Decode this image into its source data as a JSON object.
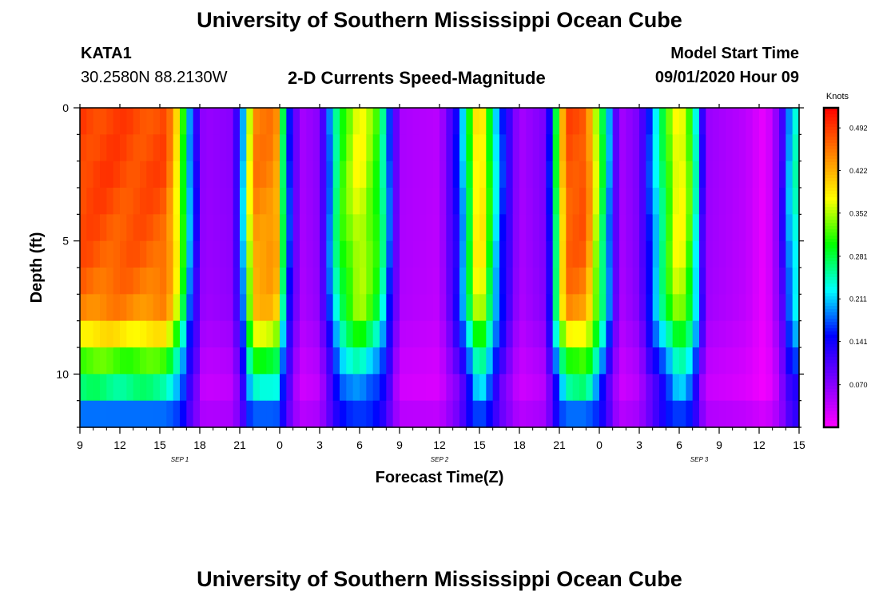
{
  "header": {
    "title": "University of Southern Mississippi Ocean Cube",
    "station_id": "KATA1",
    "coords": "30.2580N 88.2130W",
    "chart_title": "2-D Currents Speed-Magnitude",
    "model_label": "Model Start Time",
    "model_time": "09/01/2020 Hour 09"
  },
  "footer": {
    "title": "University of Southern Mississippi Ocean Cube"
  },
  "colors": {
    "background": "#ffffff",
    "axis": "#000000"
  },
  "chart_data": {
    "type": "heatmap",
    "title": "2-D Currents Speed-Magnitude",
    "xlabel": "Forecast Time(Z)",
    "ylabel": "Depth (ft)",
    "x_start_hour": 9,
    "x_end_hour": 63,
    "x_step_hours": 0.5,
    "xlim": [
      9,
      63
    ],
    "ylim": [
      0,
      12
    ],
    "x_ticks": [
      {
        "hour": 9,
        "label": "9"
      },
      {
        "hour": 12,
        "label": "12"
      },
      {
        "hour": 15,
        "label": "15"
      },
      {
        "hour": 18,
        "label": "18"
      },
      {
        "hour": 21,
        "label": "21"
      },
      {
        "hour": 24,
        "label": "0"
      },
      {
        "hour": 27,
        "label": "3"
      },
      {
        "hour": 30,
        "label": "6"
      },
      {
        "hour": 33,
        "label": "9"
      },
      {
        "hour": 36,
        "label": "12"
      },
      {
        "hour": 39,
        "label": "15"
      },
      {
        "hour": 42,
        "label": "18"
      },
      {
        "hour": 45,
        "label": "21"
      },
      {
        "hour": 48,
        "label": "0"
      },
      {
        "hour": 51,
        "label": "3"
      },
      {
        "hour": 54,
        "label": "6"
      },
      {
        "hour": 57,
        "label": "9"
      },
      {
        "hour": 60,
        "label": "12"
      },
      {
        "hour": 63,
        "label": "15"
      }
    ],
    "date_labels": [
      {
        "hour": 16.5,
        "label": "SEP 1"
      },
      {
        "hour": 36,
        "label": "SEP 2"
      },
      {
        "hour": 55.5,
        "label": "SEP 3"
      }
    ],
    "y_ticks": [
      {
        "depth": 0,
        "label": "0"
      },
      {
        "depth": 5,
        "label": "5"
      },
      {
        "depth": 10,
        "label": "10"
      }
    ],
    "depth_bins": [
      0,
      1,
      2,
      3,
      4,
      5,
      6,
      7,
      8,
      9,
      10,
      11,
      12
    ],
    "depth_factor": [
      1.0,
      1.0,
      1.0,
      0.99,
      0.98,
      0.97,
      0.95,
      0.92,
      0.8,
      0.66,
      0.54,
      0.42,
      0.3
    ],
    "bottom_row_speed": 0.11,
    "surface_speed_profile": [
      {
        "hour": 9,
        "speed": 0.49
      },
      {
        "hour": 15.5,
        "speed": 0.48
      },
      {
        "hour": 16.5,
        "speed": 0.36
      },
      {
        "hour": 17.3,
        "speed": 0.19
      },
      {
        "hour": 18.3,
        "speed": 0.06
      },
      {
        "hour": 20.5,
        "speed": 0.07
      },
      {
        "hour": 21.3,
        "speed": 0.22
      },
      {
        "hour": 22,
        "speed": 0.45
      },
      {
        "hour": 23.7,
        "speed": 0.45
      },
      {
        "hour": 24.5,
        "speed": 0.2
      },
      {
        "hour": 25.5,
        "speed": 0.05
      },
      {
        "hour": 27,
        "speed": 0.07
      },
      {
        "hour": 28.5,
        "speed": 0.3
      },
      {
        "hour": 30,
        "speed": 0.38
      },
      {
        "hour": 31.5,
        "speed": 0.3
      },
      {
        "hour": 33,
        "speed": 0.05
      },
      {
        "hour": 36,
        "speed": 0.04
      },
      {
        "hour": 37.5,
        "speed": 0.16
      },
      {
        "hour": 39,
        "speed": 0.43
      },
      {
        "hour": 40.5,
        "speed": 0.18
      },
      {
        "hour": 42,
        "speed": 0.05
      },
      {
        "hour": 44,
        "speed": 0.08
      },
      {
        "hour": 45.5,
        "speed": 0.48
      },
      {
        "hour": 47,
        "speed": 0.48
      },
      {
        "hour": 48.5,
        "speed": 0.24
      },
      {
        "hour": 49.5,
        "speed": 0.05
      },
      {
        "hour": 51,
        "speed": 0.08
      },
      {
        "hour": 53,
        "speed": 0.3
      },
      {
        "hour": 54,
        "speed": 0.4
      },
      {
        "hour": 55,
        "speed": 0.3
      },
      {
        "hour": 56,
        "speed": 0.06
      },
      {
        "hour": 59,
        "speed": 0.04
      },
      {
        "hour": 60.5,
        "speed": 0.01
      },
      {
        "hour": 61.5,
        "speed": 0.08
      },
      {
        "hour": 62.5,
        "speed": 0.24
      },
      {
        "hour": 63,
        "speed": 0.24
      }
    ],
    "colorbar": {
      "title": "Knots",
      "min": 0.0,
      "max": 0.525,
      "ticks": [
        0.492,
        0.422,
        0.352,
        0.281,
        0.211,
        0.141,
        0.07
      ],
      "tick_labels": [
        "0.492",
        "0.422",
        "0.352",
        "0.281",
        "0.211",
        "0.141",
        "0.070"
      ],
      "colormap": [
        "#ff00ff",
        "#7f00ff",
        "#0000ff",
        "#00ffff",
        "#00ff00",
        "#ffff00",
        "#ff8000",
        "#ff0000"
      ]
    }
  }
}
